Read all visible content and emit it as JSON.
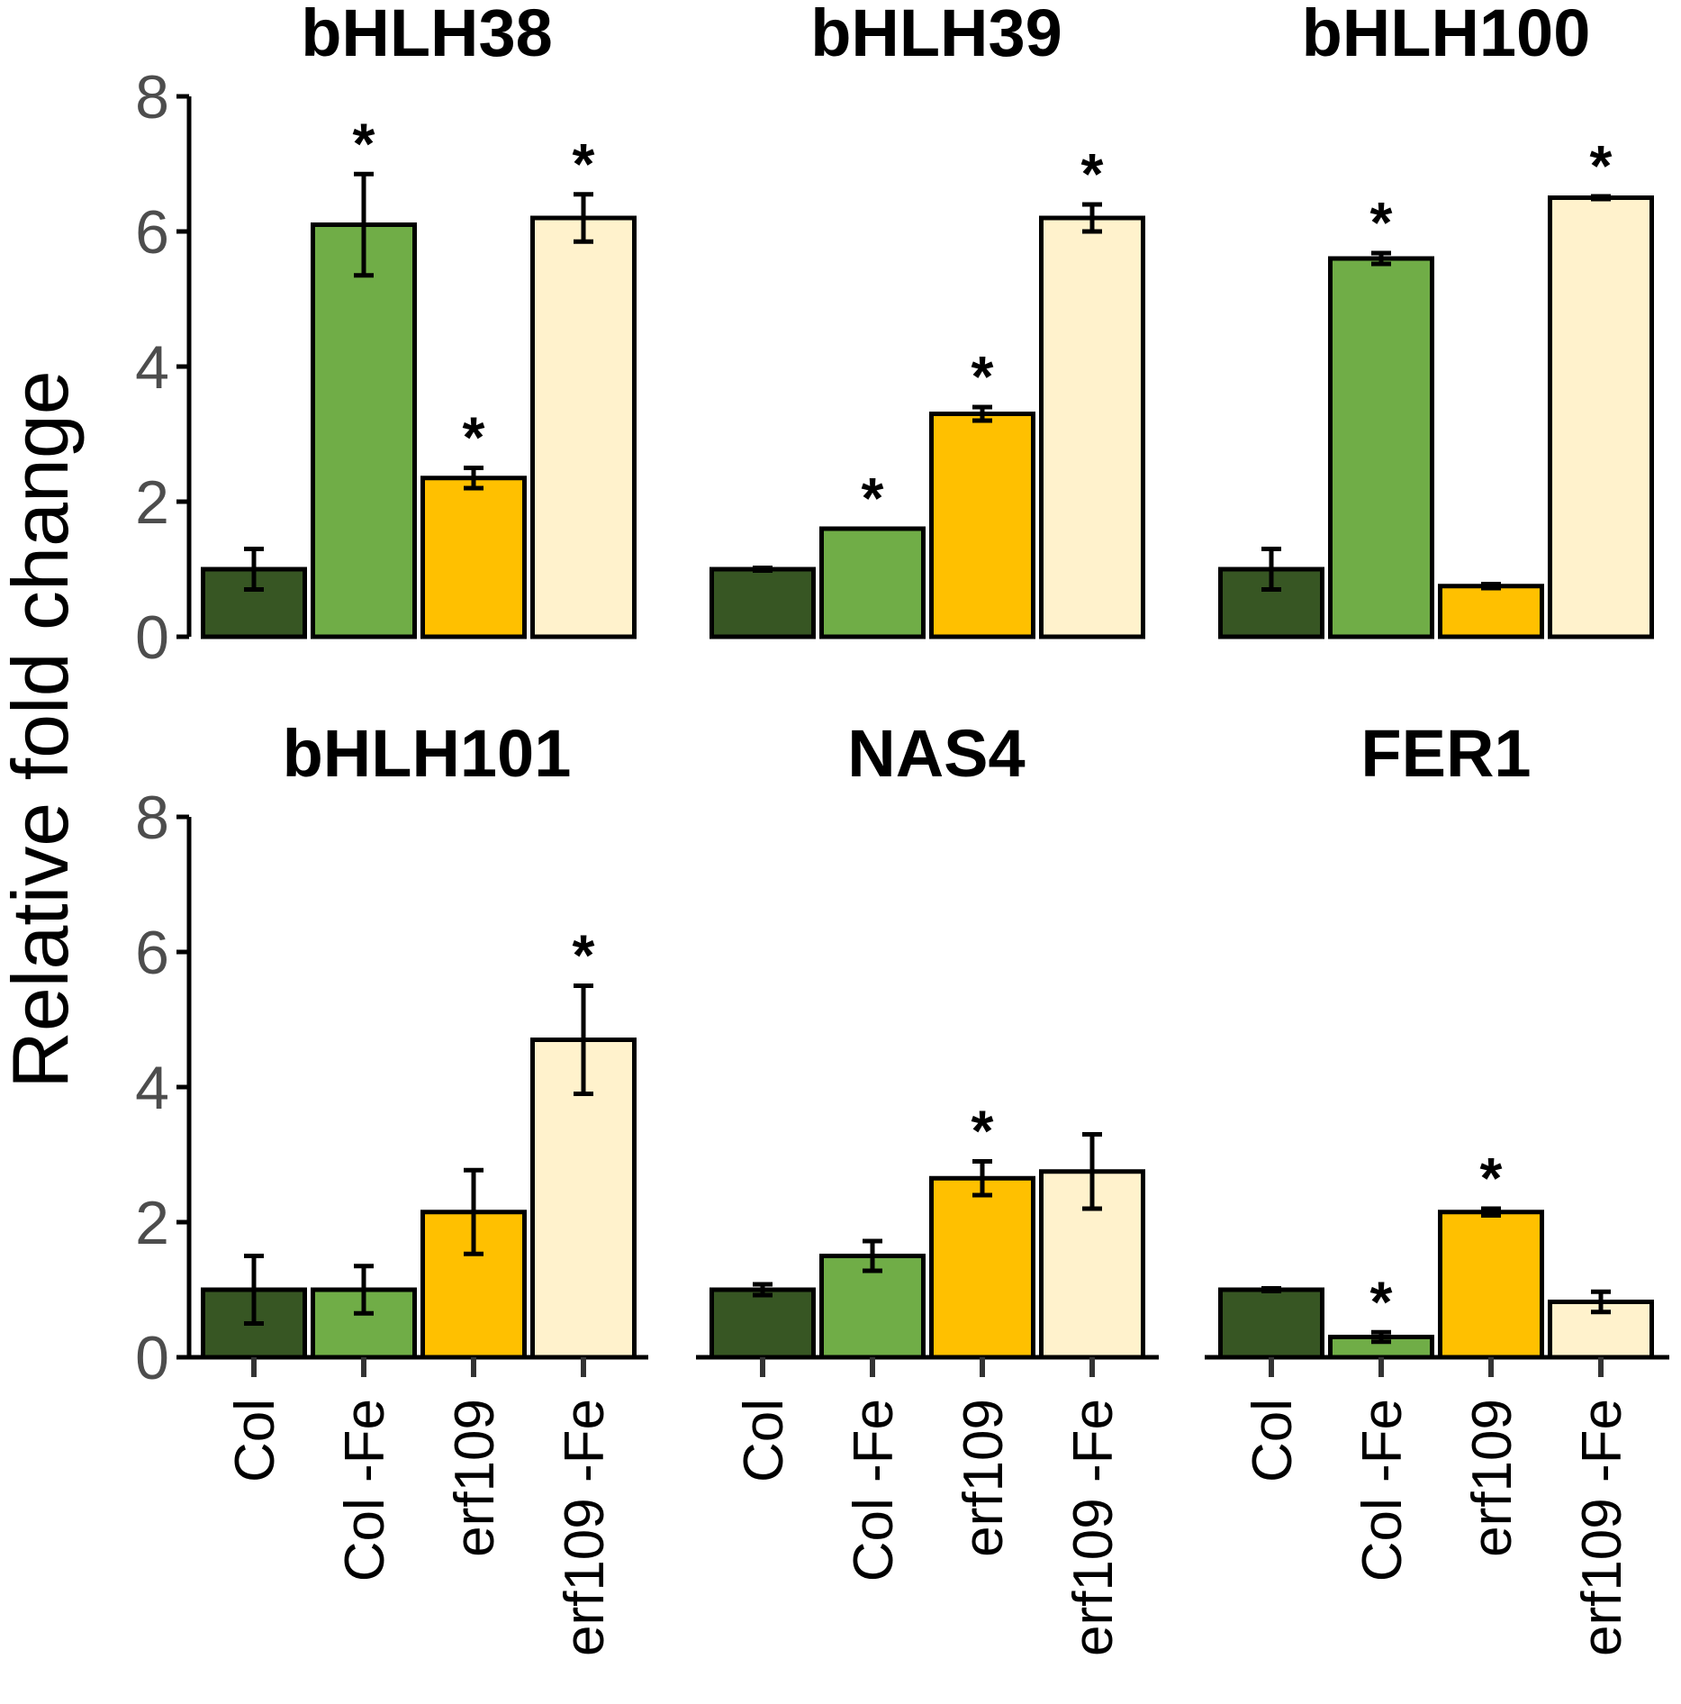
{
  "chart_data": {
    "type": "bar",
    "ylabel": "Relative fold change",
    "ylim": [
      0,
      8
    ],
    "yticks": [
      "0",
      "2",
      "4",
      "6",
      "8"
    ],
    "categories": [
      "Col",
      "Col -Fe",
      "erf109",
      "erf109 -Fe"
    ],
    "colors": [
      "#375623",
      "#70ad47",
      "#ffc000",
      "#fff2cc"
    ],
    "significance_marker": "*",
    "panels": [
      {
        "title": "bHLH38",
        "values": [
          1.0,
          6.1,
          2.35,
          6.2
        ],
        "errors": [
          0.3,
          0.75,
          0.15,
          0.35
        ],
        "significant": [
          false,
          true,
          true,
          true
        ]
      },
      {
        "title": "bHLH39",
        "values": [
          1.0,
          1.6,
          3.3,
          6.2
        ],
        "errors": [
          0.02,
          0.0,
          0.1,
          0.2
        ],
        "significant": [
          false,
          true,
          true,
          true
        ]
      },
      {
        "title": "bHLH100",
        "values": [
          1.0,
          5.6,
          0.75,
          6.5
        ],
        "errors": [
          0.3,
          0.08,
          0.03,
          0.02
        ],
        "significant": [
          false,
          true,
          false,
          true
        ]
      },
      {
        "title": "bHLH101",
        "values": [
          1.0,
          1.0,
          2.15,
          4.7
        ],
        "errors": [
          0.5,
          0.35,
          0.62,
          0.8
        ],
        "significant": [
          false,
          false,
          false,
          true
        ]
      },
      {
        "title": "NAS4",
        "values": [
          1.0,
          1.5,
          2.65,
          2.75
        ],
        "errors": [
          0.08,
          0.22,
          0.25,
          0.55
        ],
        "significant": [
          false,
          false,
          true,
          false
        ]
      },
      {
        "title": "FER1",
        "values": [
          1.0,
          0.3,
          2.15,
          0.82
        ],
        "errors": [
          0.02,
          0.07,
          0.05,
          0.15
        ],
        "significant": [
          false,
          true,
          true,
          false
        ]
      }
    ]
  }
}
